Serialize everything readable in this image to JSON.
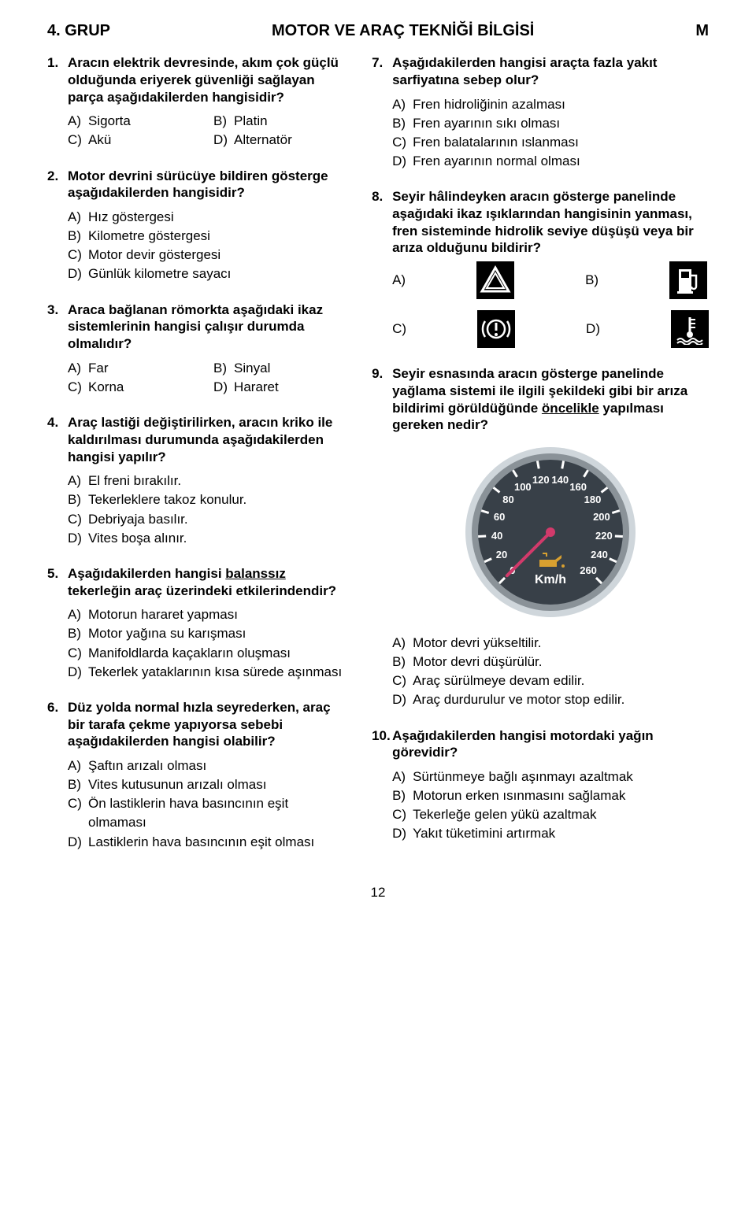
{
  "header": {
    "left": "4. GRUP",
    "center": "MOTOR VE ARAÇ TEKNİĞİ BİLGİSİ",
    "right": "M"
  },
  "footer": "12",
  "left": {
    "q1": {
      "num": "1.",
      "text": "Aracın elektrik devresinde, akım çok güçlü olduğunda eriyerek güvenliği sağlayan parça aşağıdakilerden hangisidir?",
      "A": "Sigorta",
      "B": "Platin",
      "C": "Akü",
      "D": "Alternatör"
    },
    "q2": {
      "num": "2.",
      "text": "Motor devrini sürücüye bildiren gösterge aşağıdakilerden hangisidir?",
      "A": "Hız göstergesi",
      "B": "Kilometre göstergesi",
      "C": "Motor devir göstergesi",
      "D": "Günlük kilometre sayacı"
    },
    "q3": {
      "num": "3.",
      "text": "Araca bağlanan römorkta aşağıdaki ikaz sistemlerinin hangisi çalışır durumda olmalıdır?",
      "A": "Far",
      "B": "Sinyal",
      "C": "Korna",
      "D": "Hararet"
    },
    "q4": {
      "num": "4.",
      "text": "Araç lastiği değiştirilirken, aracın kriko ile kaldırılması durumunda aşağıdakilerden hangisi yapılır?",
      "A": "El freni bırakılır.",
      "B": "Tekerleklere takoz konulur.",
      "C": "Debriyaja basılır.",
      "D": "Vites boşa alınır."
    },
    "q5": {
      "num": "5.",
      "text_before": "Aşağıdakilerden hangisi ",
      "underline": "balanssız",
      "text_after": " tekerleğin araç üzerindeki etkilerindendir?",
      "A": "Motorun hararet yapması",
      "B": "Motor yağına su karışması",
      "C": "Manifoldlarda kaçakların oluşması",
      "D": "Tekerlek yataklarının kısa sürede aşınması"
    },
    "q6": {
      "num": "6.",
      "text": "Düz yolda normal hızla seyrederken, araç bir tarafa çekme yapıyorsa sebebi aşağıdakilerden hangisi olabilir?",
      "A": "Şaftın arızalı olması",
      "B": "Vites kutusunun arızalı olması",
      "C": "Ön lastiklerin hava basıncının eşit olmaması",
      "D": "Lastiklerin hava basıncının eşit olması"
    }
  },
  "right": {
    "q7": {
      "num": "7.",
      "text": "Aşağıdakilerden hangisi araçta fazla yakıt sarfiyatına sebep olur?",
      "A": "Fren hidroliğinin azalması",
      "B": "Fren ayarının sıkı olması",
      "C": "Fren balatalarının ıslanması",
      "D": "Fren ayarının normal olması"
    },
    "q8": {
      "num": "8.",
      "text": "Seyir hâlindeyken aracın gösterge panelinde aşağıdaki ikaz ışıklarından hangisinin yanması, fren sisteminde hidrolik seviye düşüşü veya bir arıza olduğunu bildirir?",
      "labels": {
        "A": "A)",
        "B": "B)",
        "C": "C)",
        "D": "D)"
      }
    },
    "q9": {
      "num": "9.",
      "text_before": "Seyir esnasında aracın gösterge panelinde yağlama sistemi ile ilgili şekildeki gibi bir arıza bildirimi görüldüğünde ",
      "underline": "öncelikle",
      "text_after": " yapılması gereken nedir?",
      "gauge": {
        "ticks": [
          "0",
          "20",
          "40",
          "60",
          "80",
          "100",
          "120",
          "140",
          "160",
          "180",
          "200",
          "220",
          "240",
          "260"
        ],
        "unit": "Km/h",
        "face": "#384048",
        "ring_outer": "#cfd6db",
        "ring_inner": "#8a9298",
        "tick_color": "#ffffff",
        "needle_color": "#d23a6b",
        "oil_icon_color": "#d8a030"
      },
      "A": "Motor devri yükseltilir.",
      "B": "Motor devri düşürülür.",
      "C": "Araç sürülmeye devam edilir.",
      "D": "Araç durdurulur ve motor stop edilir."
    },
    "q10": {
      "num": "10.",
      "text": "Aşağıdakilerden hangisi motordaki yağın görevidir?",
      "A": "Sürtünmeye bağlı aşınmayı azaltmak",
      "B": "Motorun erken ısınmasını sağlamak",
      "C": "Tekerleğe gelen yükü azaltmak",
      "D": "Yakıt tüketimini artırmak"
    }
  }
}
